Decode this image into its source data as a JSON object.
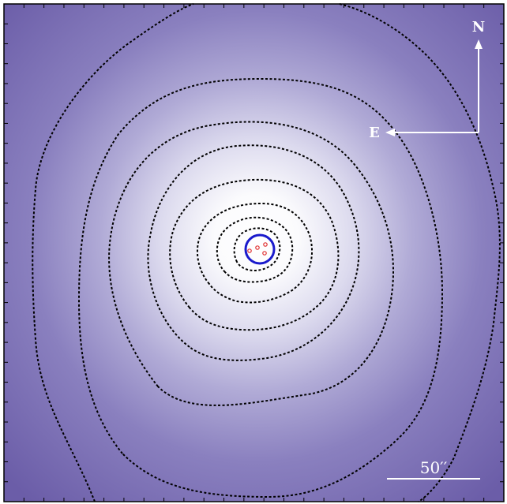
{
  "image": {
    "compass": {
      "north_label": "N",
      "east_label": "E"
    },
    "scale_bar": {
      "label": "50′′"
    },
    "colors": {
      "background_edge": "#6b5da8",
      "background_mid": "#9d96cc",
      "core": "#ffffff",
      "contours": "#000000",
      "circle": "#1a1acc",
      "sources": "#e03030",
      "annotations": "#ffffff"
    }
  }
}
